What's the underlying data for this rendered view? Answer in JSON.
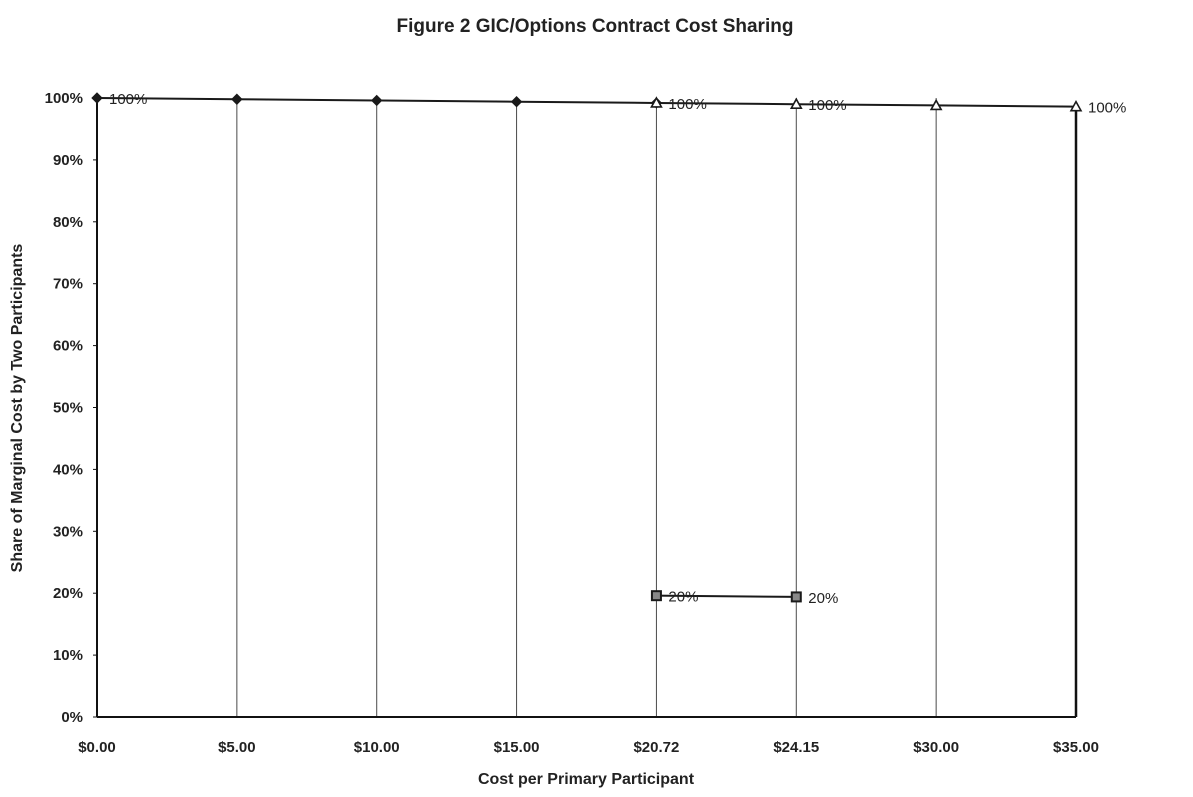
{
  "chart_data": {
    "type": "line",
    "title": "Figure 2 GIC/Options Contract Cost Sharing",
    "xlabel": "Cost per Primary Participant",
    "ylabel": "Share of Marginal Cost by Two Participants",
    "categories": [
      "$0.00",
      "$5.00",
      "$10.00",
      "$15.00",
      "$20.72",
      "$24.15",
      "$30.00",
      "$35.00"
    ],
    "yticks": [
      "0%",
      "10%",
      "20%",
      "30%",
      "40%",
      "50%",
      "60%",
      "70%",
      "80%",
      "90%",
      "100%"
    ],
    "ylim": [
      0,
      100
    ],
    "grid": "vertical",
    "legend": "none",
    "series": [
      {
        "marker": "diamond",
        "color": "#1a1a1a",
        "points": [
          {
            "x": 0,
            "y": 100,
            "label": "100%"
          },
          {
            "x": 1,
            "y": 99.8
          },
          {
            "x": 2,
            "y": 99.6
          },
          {
            "x": 3,
            "y": 99.4
          },
          {
            "x": 4,
            "y": 99.2,
            "label": "100%"
          }
        ]
      },
      {
        "marker": "square",
        "color": "#1a1a1a",
        "points": [
          {
            "x": 4,
            "y": 19.6,
            "label": "20%"
          },
          {
            "x": 5,
            "y": 19.4,
            "label": "20%"
          }
        ]
      },
      {
        "marker": "triangle",
        "color": "#1a1a1a",
        "points": [
          {
            "x": 4,
            "y": 99.2
          },
          {
            "x": 5,
            "y": 99.0,
            "label": "100%"
          },
          {
            "x": 6,
            "y": 98.8
          },
          {
            "x": 7,
            "y": 98.6,
            "label": "100%"
          }
        ]
      }
    ]
  }
}
